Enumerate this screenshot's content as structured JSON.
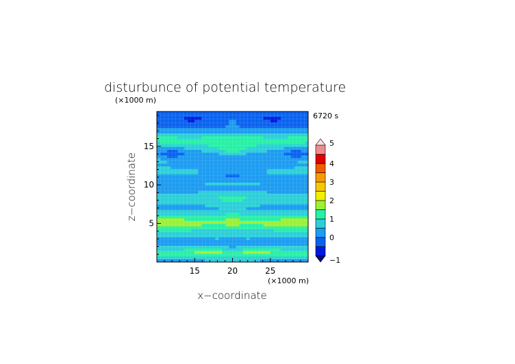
{
  "chart_data": {
    "type": "heatmap",
    "title": "disturbunce of potential temperature",
    "time_label": "6720 s",
    "xlabel": "x−coordinate",
    "ylabel": "z−coordinate",
    "x_unit": "(×1000 m)",
    "y_unit": "(×1000 m)",
    "xlim": [
      10,
      30
    ],
    "ylim": [
      0,
      19.5
    ],
    "x_ticks": [
      15,
      20,
      25
    ],
    "y_ticks": [
      5,
      10,
      15
    ],
    "colorbar": {
      "levels": [
        -1,
        -0.5,
        0,
        0.5,
        1,
        1.5,
        2,
        2.5,
        3,
        3.5,
        4,
        4.5,
        5
      ],
      "tick_labels": [
        "−1",
        "0",
        "1",
        "2",
        "3",
        "4",
        "5"
      ],
      "tick_values": [
        -1,
        0,
        1,
        2,
        3,
        4,
        5
      ],
      "colors": [
        "#0018e0",
        "#0a62f0",
        "#1c9cf2",
        "#2ccfd8",
        "#28f0a6",
        "#9cf034",
        "#f0f000",
        "#f8c800",
        "#f89a00",
        "#f45a00",
        "#e00000",
        "#f08c8c",
        "#f8b8bc"
      ],
      "extend": "both"
    },
    "bands": [
      {
        "z": 0.0,
        "v": 0.4
      },
      {
        "z": 0.4,
        "v": 0.6
      },
      {
        "z": 0.7,
        "v": 1.0
      },
      {
        "z": 1.0,
        "v": 1.5
      },
      {
        "z": 1.3,
        "v": 1.5
      },
      {
        "z": 1.7,
        "v": 0.9
      },
      {
        "z": 2.3,
        "v": 0.4
      },
      {
        "z": 3.0,
        "v": 0.45
      },
      {
        "z": 3.6,
        "v": 0.7
      },
      {
        "z": 4.1,
        "v": 1.0
      },
      {
        "z": 4.6,
        "v": 1.5
      },
      {
        "z": 5.1,
        "v": 1.6
      },
      {
        "z": 5.6,
        "v": 1.4
      },
      {
        "z": 6.2,
        "v": 0.8
      },
      {
        "z": 6.9,
        "v": 0.3
      },
      {
        "z": 7.6,
        "v": 0.6
      },
      {
        "z": 8.2,
        "v": 0.9
      },
      {
        "z": 8.8,
        "v": 0.6
      },
      {
        "z": 9.5,
        "v": 0.25
      },
      {
        "z": 10.3,
        "v": 0.55
      },
      {
        "z": 11.0,
        "v": 0.3
      },
      {
        "z": 11.7,
        "v": 0.6
      },
      {
        "z": 12.4,
        "v": 0.3
      },
      {
        "z": 13.3,
        "v": 0.5
      },
      {
        "z": 14.0,
        "v": 0.35
      },
      {
        "z": 14.6,
        "v": 0.55
      },
      {
        "z": 15.2,
        "v": 1.0
      },
      {
        "z": 15.8,
        "v": 1.3
      },
      {
        "z": 16.4,
        "v": 0.7
      },
      {
        "z": 17.0,
        "v": 0.2
      },
      {
        "z": 17.7,
        "v": -0.3
      },
      {
        "z": 18.4,
        "v": -0.6
      },
      {
        "z": 19.5,
        "v": -0.4
      }
    ],
    "features": [
      {
        "x": 20,
        "z": 18.5,
        "sx": 3.0,
        "sz": 0.9,
        "dv": 0.7
      },
      {
        "x": 20,
        "z": 14.5,
        "sx": 2.5,
        "sz": 0.5,
        "dv": 0.6
      },
      {
        "x": 12,
        "z": 14.0,
        "sx": 2.0,
        "sz": 0.6,
        "dv": -0.7
      },
      {
        "x": 28.5,
        "z": 14.0,
        "sx": 2.0,
        "sz": 0.6,
        "dv": -0.7
      },
      {
        "x": 20,
        "z": 11.3,
        "sx": 1.2,
        "sz": 0.3,
        "dv": -0.6
      },
      {
        "x": 20,
        "z": 6.5,
        "sx": 2.5,
        "sz": 1.6,
        "dv": 0.35
      },
      {
        "x": 11,
        "z": 16.2,
        "sx": 1.5,
        "sz": 0.5,
        "dv": 0.5
      },
      {
        "x": 29,
        "z": 16.2,
        "sx": 1.5,
        "sz": 0.5,
        "dv": 0.5
      },
      {
        "x": 20,
        "z": 1.8,
        "sx": 1.5,
        "sz": 0.8,
        "dv": -0.4
      }
    ]
  }
}
